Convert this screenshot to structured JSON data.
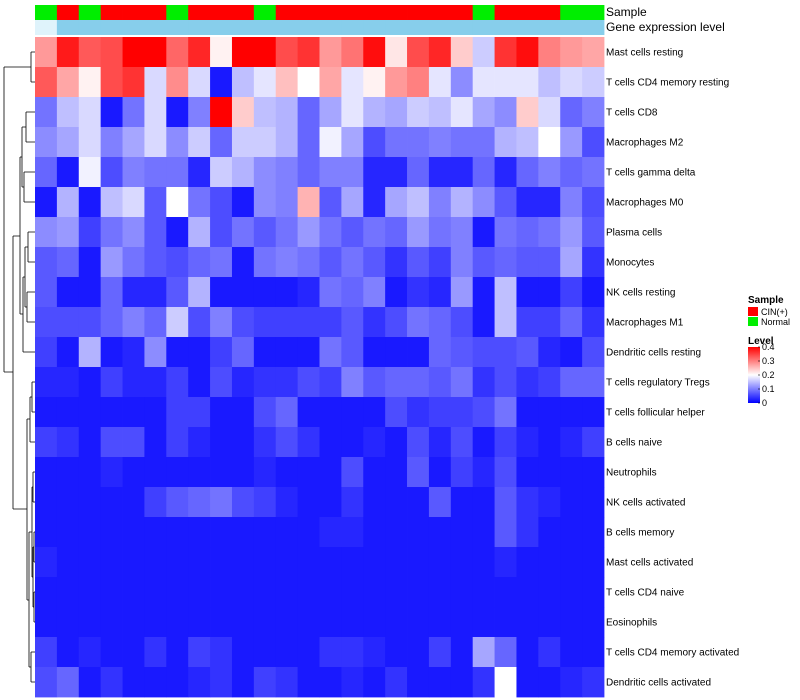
{
  "chart_data": {
    "type": "heatmap",
    "title": "",
    "annotations": {
      "sample_label": "Sample",
      "expression_label": "Gene expression level",
      "sample": [
        "Normal",
        "CIN(+)",
        "Normal",
        "CIN(+)",
        "CIN(+)",
        "CIN(+)",
        "Normal",
        "CIN(+)",
        "CIN(+)",
        "CIN(+)",
        "Normal",
        "CIN(+)",
        "CIN(+)",
        "CIN(+)",
        "CIN(+)",
        "CIN(+)",
        "CIN(+)",
        "CIN(+)",
        "CIN(+)",
        "CIN(+)",
        "Normal",
        "CIN(+)",
        "CIN(+)",
        "CIN(+)",
        "Normal",
        "Normal"
      ],
      "sample_colors": {
        "CIN(+)": "#ff0000",
        "Normal": "#00ee00"
      },
      "expression_color": "#87ceeb",
      "expression_light_color": "#dff3fb",
      "expression_split_index": 1
    },
    "rows": [
      "Mast cells resting",
      "T cells CD4 memory resting",
      "T cells CD8",
      "Macrophages M2",
      "T cells gamma delta",
      "Macrophages M0",
      "Plasma cells",
      "Monocytes",
      "NK cells resting",
      "Macrophages M1",
      "Dendritic cells resting",
      "T cells regulatory  Tregs",
      "T cells follicular helper",
      "B cells naive",
      "Neutrophils",
      "NK cells activated",
      "B cells memory",
      "Mast cells activated",
      "T cells CD4 naive",
      "Eosinophils",
      "T cells CD4 memory activated",
      "Dendritic cells activated"
    ],
    "values": [
      [
        0.28,
        0.38,
        0.33,
        0.34,
        0.4,
        0.4,
        0.32,
        0.37,
        0.21,
        0.4,
        0.4,
        0.34,
        0.36,
        0.28,
        0.31,
        0.39,
        0.22,
        0.34,
        0.37,
        0.24,
        0.16,
        0.36,
        0.39,
        0.3,
        0.28,
        0.27
      ],
      [
        0.33,
        0.27,
        0.21,
        0.34,
        0.36,
        0.17,
        0.29,
        0.17,
        0.02,
        0.15,
        0.18,
        0.25,
        0.2,
        0.27,
        0.18,
        0.21,
        0.28,
        0.3,
        0.18,
        0.11,
        0.18,
        0.18,
        0.18,
        0.15,
        0.17,
        0.16
      ],
      [
        0.09,
        0.15,
        0.17,
        0.02,
        0.09,
        0.17,
        0.02,
        0.1,
        0.4,
        0.24,
        0.15,
        0.14,
        0.08,
        0.13,
        0.18,
        0.14,
        0.13,
        0.16,
        0.15,
        0.18,
        0.13,
        0.11,
        0.24,
        0.17,
        0.08,
        0.1
      ],
      [
        0.11,
        0.13,
        0.17,
        0.1,
        0.13,
        0.17,
        0.11,
        0.16,
        0.08,
        0.16,
        0.16,
        0.14,
        0.08,
        0.19,
        0.13,
        0.06,
        0.09,
        0.09,
        0.1,
        0.09,
        0.09,
        0.14,
        0.15,
        0.2,
        0.12,
        0.06
      ],
      [
        0.08,
        0.02,
        0.19,
        0.06,
        0.1,
        0.09,
        0.09,
        0.03,
        0.16,
        0.14,
        0.11,
        0.1,
        0.08,
        0.1,
        0.1,
        0.03,
        0.03,
        0.08,
        0.03,
        0.03,
        0.08,
        0.03,
        0.08,
        0.1,
        0.08,
        0.09
      ],
      [
        0.02,
        0.14,
        0.02,
        0.15,
        0.17,
        0.07,
        0.2,
        0.09,
        0.06,
        0.02,
        0.11,
        0.1,
        0.26,
        0.07,
        0.13,
        0.03,
        0.13,
        0.15,
        0.1,
        0.14,
        0.11,
        0.07,
        0.03,
        0.03,
        0.1,
        0.06
      ],
      [
        0.11,
        0.12,
        0.05,
        0.09,
        0.11,
        0.07,
        0.02,
        0.14,
        0.06,
        0.09,
        0.07,
        0.09,
        0.12,
        0.09,
        0.07,
        0.09,
        0.08,
        0.12,
        0.09,
        0.1,
        0.02,
        0.09,
        0.08,
        0.09,
        0.12,
        0.07
      ],
      [
        0.07,
        0.08,
        0.02,
        0.12,
        0.09,
        0.07,
        0.06,
        0.08,
        0.09,
        0.02,
        0.09,
        0.1,
        0.09,
        0.07,
        0.09,
        0.07,
        0.04,
        0.07,
        0.05,
        0.1,
        0.07,
        0.08,
        0.07,
        0.07,
        0.13,
        0.04
      ],
      [
        0.07,
        0.02,
        0.02,
        0.08,
        0.03,
        0.03,
        0.07,
        0.14,
        0.02,
        0.02,
        0.02,
        0.02,
        0.03,
        0.09,
        0.08,
        0.1,
        0.02,
        0.04,
        0.03,
        0.12,
        0.02,
        0.15,
        0.02,
        0.02,
        0.05,
        0.02
      ],
      [
        0.06,
        0.06,
        0.06,
        0.08,
        0.1,
        0.08,
        0.16,
        0.06,
        0.1,
        0.06,
        0.05,
        0.05,
        0.05,
        0.05,
        0.07,
        0.04,
        0.06,
        0.09,
        0.08,
        0.06,
        0.02,
        0.15,
        0.05,
        0.05,
        0.08,
        0.04
      ],
      [
        0.05,
        0.02,
        0.14,
        0.02,
        0.03,
        0.11,
        0.02,
        0.02,
        0.05,
        0.08,
        0.02,
        0.02,
        0.02,
        0.09,
        0.07,
        0.02,
        0.02,
        0.02,
        0.08,
        0.07,
        0.06,
        0.06,
        0.07,
        0.03,
        0.02,
        0.06
      ],
      [
        0.03,
        0.03,
        0.02,
        0.05,
        0.03,
        0.03,
        0.05,
        0.02,
        0.06,
        0.03,
        0.04,
        0.04,
        0.06,
        0.05,
        0.1,
        0.07,
        0.08,
        0.08,
        0.07,
        0.09,
        0.04,
        0.06,
        0.04,
        0.05,
        0.08,
        0.08
      ],
      [
        0.02,
        0.02,
        0.02,
        0.02,
        0.02,
        0.02,
        0.05,
        0.05,
        0.02,
        0.02,
        0.06,
        0.08,
        0.02,
        0.02,
        0.02,
        0.02,
        0.06,
        0.04,
        0.05,
        0.05,
        0.06,
        0.09,
        0.02,
        0.02,
        0.02,
        0.02
      ],
      [
        0.05,
        0.04,
        0.02,
        0.06,
        0.06,
        0.02,
        0.05,
        0.03,
        0.02,
        0.02,
        0.04,
        0.06,
        0.04,
        0.02,
        0.02,
        0.03,
        0.02,
        0.06,
        0.03,
        0.06,
        0.02,
        0.05,
        0.03,
        0.02,
        0.03,
        0.05
      ],
      [
        0.02,
        0.02,
        0.02,
        0.03,
        0.02,
        0.02,
        0.02,
        0.02,
        0.02,
        0.02,
        0.03,
        0.02,
        0.02,
        0.02,
        0.06,
        0.02,
        0.02,
        0.07,
        0.02,
        0.05,
        0.03,
        0.06,
        0.02,
        0.02,
        0.02,
        0.02
      ],
      [
        0.02,
        0.02,
        0.02,
        0.02,
        0.02,
        0.05,
        0.07,
        0.08,
        0.09,
        0.06,
        0.05,
        0.03,
        0.02,
        0.02,
        0.04,
        0.02,
        0.02,
        0.02,
        0.07,
        0.02,
        0.02,
        0.07,
        0.04,
        0.03,
        0.02,
        0.02
      ],
      [
        0.02,
        0.02,
        0.02,
        0.02,
        0.02,
        0.02,
        0.02,
        0.02,
        0.02,
        0.02,
        0.02,
        0.02,
        0.02,
        0.03,
        0.03,
        0.02,
        0.02,
        0.02,
        0.02,
        0.02,
        0.02,
        0.07,
        0.04,
        0.02,
        0.02,
        0.02
      ],
      [
        0.03,
        0.02,
        0.02,
        0.02,
        0.02,
        0.02,
        0.02,
        0.02,
        0.02,
        0.02,
        0.02,
        0.02,
        0.02,
        0.02,
        0.02,
        0.02,
        0.02,
        0.02,
        0.02,
        0.02,
        0.02,
        0.03,
        0.02,
        0.02,
        0.02,
        0.02
      ],
      [
        0.02,
        0.02,
        0.02,
        0.02,
        0.02,
        0.02,
        0.02,
        0.02,
        0.02,
        0.02,
        0.02,
        0.02,
        0.02,
        0.02,
        0.02,
        0.02,
        0.02,
        0.02,
        0.02,
        0.02,
        0.02,
        0.02,
        0.02,
        0.02,
        0.02,
        0.02
      ],
      [
        0.02,
        0.02,
        0.02,
        0.02,
        0.02,
        0.02,
        0.02,
        0.02,
        0.02,
        0.02,
        0.02,
        0.02,
        0.02,
        0.02,
        0.02,
        0.02,
        0.02,
        0.02,
        0.02,
        0.02,
        0.02,
        0.02,
        0.02,
        0.02,
        0.02,
        0.02
      ],
      [
        0.05,
        0.02,
        0.03,
        0.02,
        0.02,
        0.04,
        0.02,
        0.05,
        0.04,
        0.02,
        0.02,
        0.02,
        0.02,
        0.04,
        0.04,
        0.03,
        0.02,
        0.02,
        0.05,
        0.02,
        0.13,
        0.08,
        0.02,
        0.04,
        0.02,
        0.02
      ],
      [
        0.06,
        0.08,
        0.02,
        0.04,
        0.02,
        0.02,
        0.02,
        0.03,
        0.04,
        0.02,
        0.05,
        0.04,
        0.02,
        0.02,
        0.03,
        0.02,
        0.04,
        0.02,
        0.02,
        0.02,
        0.04,
        0.2,
        0.02,
        0.02,
        0.03,
        0.04
      ]
    ],
    "color_scale": {
      "low_color": "#0000ff",
      "mid_color": "#ffffff",
      "high_color": "#ff0000",
      "low_value": 0,
      "mid_value": 0.2,
      "high_value": 0.4
    },
    "legend": {
      "sample_title": "Sample",
      "sample_entries": [
        {
          "label": "CIN(+)",
          "color": "#ff0000"
        },
        {
          "label": "Normal",
          "color": "#00ee00"
        }
      ],
      "level_title": "Level",
      "level_ticks": [
        "0.4",
        "0.3",
        "0.2",
        "0.1",
        "0"
      ],
      "level_tick_values": [
        0.4,
        0.3,
        0.2,
        0.1,
        0
      ],
      "placement": "right"
    },
    "dendrogram": {
      "side": "left",
      "rows_clustered": true
    }
  }
}
